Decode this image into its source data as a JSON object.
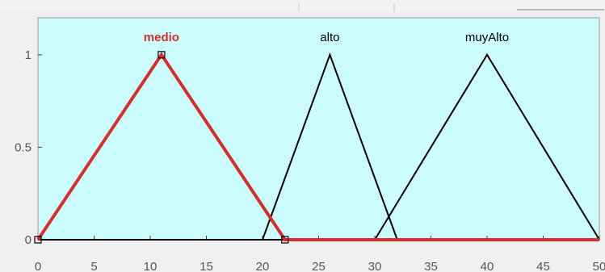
{
  "chart_data": {
    "type": "line",
    "title": "",
    "xlabel": "",
    "ylabel": "",
    "xlim": [
      0,
      50
    ],
    "ylim": [
      0,
      1.2
    ],
    "xticks": [
      0,
      5,
      10,
      15,
      20,
      25,
      30,
      35,
      40,
      45,
      50
    ],
    "yticks": [
      0,
      0.5,
      1
    ],
    "grid": false,
    "background_color": "#ccfbfb",
    "selected_color": "#d32f2f",
    "line_color": "#000000",
    "series": [
      {
        "name": "medio",
        "type": "triangle",
        "x": [
          0,
          11,
          22
        ],
        "y": [
          0,
          1,
          0
        ],
        "selected": true
      },
      {
        "name": "alto",
        "type": "triangle",
        "x": [
          20,
          26,
          32
        ],
        "y": [
          0,
          1,
          0
        ],
        "selected": false
      },
      {
        "name": "muyAlto",
        "type": "triangle",
        "x": [
          30,
          40,
          50
        ],
        "y": [
          0,
          1,
          0
        ],
        "selected": false
      }
    ]
  }
}
